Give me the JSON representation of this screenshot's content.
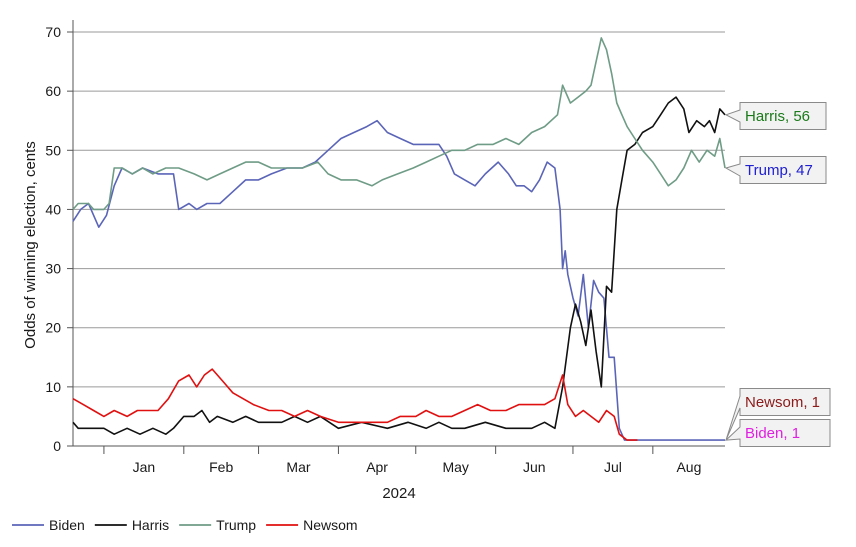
{
  "chart_data": {
    "type": "line",
    "title": "",
    "ylabel": "Odds of winning election, cents",
    "xlabel": "2024",
    "ylim": [
      0,
      70
    ],
    "y_ticks": [
      "0",
      "10",
      "20",
      "30",
      "40",
      "50",
      "60",
      "70"
    ],
    "grid": "horizontal",
    "legend_position": "bottom-left",
    "months": [
      {
        "label": "Jan",
        "date": "2024-01-01"
      },
      {
        "label": "Feb",
        "date": "2024-02-01"
      },
      {
        "label": "Mar",
        "date": "2024-03-01"
      },
      {
        "label": "Apr",
        "date": "2024-04-01"
      },
      {
        "label": "May",
        "date": "2024-05-01"
      },
      {
        "label": "Jun",
        "date": "2024-06-01"
      },
      {
        "label": "Jul",
        "date": "2024-07-01"
      },
      {
        "label": "Aug",
        "date": "2024-08-01"
      }
    ],
    "x_domain": [
      "2023-12-20",
      "2024-08-29"
    ],
    "series": [
      {
        "name": "Biden",
        "color": "#5b65b8",
        "points": [
          [
            "2023-12-20",
            38
          ],
          [
            "2023-12-23",
            40
          ],
          [
            "2023-12-26",
            41
          ],
          [
            "2023-12-28",
            39
          ],
          [
            "2023-12-30",
            37
          ],
          [
            "2024-01-02",
            39
          ],
          [
            "2024-01-05",
            44
          ],
          [
            "2024-01-08",
            47
          ],
          [
            "2024-01-12",
            46
          ],
          [
            "2024-01-16",
            47
          ],
          [
            "2024-01-22",
            46
          ],
          [
            "2024-01-28",
            46
          ],
          [
            "2024-01-30",
            40
          ],
          [
            "2024-02-03",
            41
          ],
          [
            "2024-02-06",
            40
          ],
          [
            "2024-02-10",
            41
          ],
          [
            "2024-02-15",
            41
          ],
          [
            "2024-02-20",
            43
          ],
          [
            "2024-02-25",
            45
          ],
          [
            "2024-03-01",
            45
          ],
          [
            "2024-03-06",
            46
          ],
          [
            "2024-03-12",
            47
          ],
          [
            "2024-03-18",
            47
          ],
          [
            "2024-03-23",
            48
          ],
          [
            "2024-03-28",
            50
          ],
          [
            "2024-04-02",
            52
          ],
          [
            "2024-04-07",
            53
          ],
          [
            "2024-04-12",
            54
          ],
          [
            "2024-04-16",
            55
          ],
          [
            "2024-04-20",
            53
          ],
          [
            "2024-04-25",
            52
          ],
          [
            "2024-04-30",
            51
          ],
          [
            "2024-05-05",
            51
          ],
          [
            "2024-05-10",
            51
          ],
          [
            "2024-05-13",
            49
          ],
          [
            "2024-05-16",
            46
          ],
          [
            "2024-05-20",
            45
          ],
          [
            "2024-05-24",
            44
          ],
          [
            "2024-05-28",
            46
          ],
          [
            "2024-06-02",
            48
          ],
          [
            "2024-06-06",
            46
          ],
          [
            "2024-06-09",
            44
          ],
          [
            "2024-06-12",
            44
          ],
          [
            "2024-06-15",
            43
          ],
          [
            "2024-06-18",
            45
          ],
          [
            "2024-06-21",
            48
          ],
          [
            "2024-06-24",
            47
          ],
          [
            "2024-06-26",
            40
          ],
          [
            "2024-06-27",
            30
          ],
          [
            "2024-06-28",
            33
          ],
          [
            "2024-06-29",
            29
          ],
          [
            "2024-07-01",
            25
          ],
          [
            "2024-07-03",
            22
          ],
          [
            "2024-07-05",
            29
          ],
          [
            "2024-07-07",
            20
          ],
          [
            "2024-07-09",
            28
          ],
          [
            "2024-07-11",
            26
          ],
          [
            "2024-07-13",
            25
          ],
          [
            "2024-07-15",
            15
          ],
          [
            "2024-07-17",
            15
          ],
          [
            "2024-07-19",
            3
          ],
          [
            "2024-07-21",
            1
          ],
          [
            "2024-08-10",
            1
          ],
          [
            "2024-08-29",
            1
          ]
        ]
      },
      {
        "name": "Harris",
        "color": "#111111",
        "points": [
          [
            "2023-12-20",
            4
          ],
          [
            "2023-12-22",
            3
          ],
          [
            "2024-01-01",
            3
          ],
          [
            "2024-01-05",
            2
          ],
          [
            "2024-01-10",
            3
          ],
          [
            "2024-01-15",
            2
          ],
          [
            "2024-01-20",
            3
          ],
          [
            "2024-01-25",
            2
          ],
          [
            "2024-01-28",
            3
          ],
          [
            "2024-02-01",
            5
          ],
          [
            "2024-02-05",
            5
          ],
          [
            "2024-02-08",
            6
          ],
          [
            "2024-02-11",
            4
          ],
          [
            "2024-02-14",
            5
          ],
          [
            "2024-02-20",
            4
          ],
          [
            "2024-02-25",
            5
          ],
          [
            "2024-03-01",
            4
          ],
          [
            "2024-03-10",
            4
          ],
          [
            "2024-03-15",
            5
          ],
          [
            "2024-03-20",
            4
          ],
          [
            "2024-03-25",
            5
          ],
          [
            "2024-04-01",
            3
          ],
          [
            "2024-04-10",
            4
          ],
          [
            "2024-04-20",
            3
          ],
          [
            "2024-04-28",
            4
          ],
          [
            "2024-05-05",
            3
          ],
          [
            "2024-05-10",
            4
          ],
          [
            "2024-05-15",
            3
          ],
          [
            "2024-05-20",
            3
          ],
          [
            "2024-05-28",
            4
          ],
          [
            "2024-06-05",
            3
          ],
          [
            "2024-06-15",
            3
          ],
          [
            "2024-06-20",
            4
          ],
          [
            "2024-06-24",
            3
          ],
          [
            "2024-06-27",
            10
          ],
          [
            "2024-06-30",
            20
          ],
          [
            "2024-07-02",
            24
          ],
          [
            "2024-07-04",
            21
          ],
          [
            "2024-07-06",
            17
          ],
          [
            "2024-07-08",
            23
          ],
          [
            "2024-07-10",
            16
          ],
          [
            "2024-07-12",
            10
          ],
          [
            "2024-07-14",
            27
          ],
          [
            "2024-07-16",
            26
          ],
          [
            "2024-07-18",
            40
          ],
          [
            "2024-07-20",
            45
          ],
          [
            "2024-07-22",
            50
          ],
          [
            "2024-07-25",
            51
          ],
          [
            "2024-07-28",
            53
          ],
          [
            "2024-08-01",
            54
          ],
          [
            "2024-08-04",
            56
          ],
          [
            "2024-08-07",
            58
          ],
          [
            "2024-08-10",
            59
          ],
          [
            "2024-08-13",
            57
          ],
          [
            "2024-08-15",
            53
          ],
          [
            "2024-08-18",
            55
          ],
          [
            "2024-08-21",
            54
          ],
          [
            "2024-08-23",
            55
          ],
          [
            "2024-08-25",
            53
          ],
          [
            "2024-08-27",
            57
          ],
          [
            "2024-08-29",
            56
          ]
        ]
      },
      {
        "name": "Trump",
        "color": "#6f9c86",
        "points": [
          [
            "2023-12-20",
            40
          ],
          [
            "2023-12-22",
            41
          ],
          [
            "2023-12-26",
            41
          ],
          [
            "2023-12-28",
            40
          ],
          [
            "2024-01-01",
            40
          ],
          [
            "2024-01-03",
            41
          ],
          [
            "2024-01-05",
            47
          ],
          [
            "2024-01-08",
            47
          ],
          [
            "2024-01-12",
            46
          ],
          [
            "2024-01-16",
            47
          ],
          [
            "2024-01-20",
            46
          ],
          [
            "2024-01-25",
            47
          ],
          [
            "2024-01-30",
            47
          ],
          [
            "2024-02-05",
            46
          ],
          [
            "2024-02-10",
            45
          ],
          [
            "2024-02-15",
            46
          ],
          [
            "2024-02-20",
            47
          ],
          [
            "2024-02-25",
            48
          ],
          [
            "2024-03-01",
            48
          ],
          [
            "2024-03-06",
            47
          ],
          [
            "2024-03-12",
            47
          ],
          [
            "2024-03-18",
            47
          ],
          [
            "2024-03-24",
            48
          ],
          [
            "2024-03-28",
            46
          ],
          [
            "2024-04-02",
            45
          ],
          [
            "2024-04-08",
            45
          ],
          [
            "2024-04-14",
            44
          ],
          [
            "2024-04-18",
            45
          ],
          [
            "2024-04-24",
            46
          ],
          [
            "2024-04-30",
            47
          ],
          [
            "2024-05-05",
            48
          ],
          [
            "2024-05-10",
            49
          ],
          [
            "2024-05-15",
            50
          ],
          [
            "2024-05-20",
            50
          ],
          [
            "2024-05-25",
            51
          ],
          [
            "2024-05-31",
            51
          ],
          [
            "2024-06-05",
            52
          ],
          [
            "2024-06-10",
            51
          ],
          [
            "2024-06-15",
            53
          ],
          [
            "2024-06-20",
            54
          ],
          [
            "2024-06-25",
            56
          ],
          [
            "2024-06-27",
            61
          ],
          [
            "2024-06-30",
            58
          ],
          [
            "2024-07-03",
            59
          ],
          [
            "2024-07-06",
            60
          ],
          [
            "2024-07-08",
            61
          ],
          [
            "2024-07-10",
            65
          ],
          [
            "2024-07-12",
            69
          ],
          [
            "2024-07-14",
            67
          ],
          [
            "2024-07-16",
            63
          ],
          [
            "2024-07-18",
            58
          ],
          [
            "2024-07-20",
            56
          ],
          [
            "2024-07-22",
            54
          ],
          [
            "2024-07-25",
            52
          ],
          [
            "2024-07-28",
            50
          ],
          [
            "2024-08-01",
            48
          ],
          [
            "2024-08-04",
            46
          ],
          [
            "2024-08-07",
            44
          ],
          [
            "2024-08-10",
            45
          ],
          [
            "2024-08-13",
            47
          ],
          [
            "2024-08-16",
            50
          ],
          [
            "2024-08-19",
            48
          ],
          [
            "2024-08-22",
            50
          ],
          [
            "2024-08-25",
            49
          ],
          [
            "2024-08-27",
            52
          ],
          [
            "2024-08-29",
            47
          ]
        ]
      },
      {
        "name": "Newsom",
        "color": "#e01010",
        "points": [
          [
            "2023-12-20",
            8
          ],
          [
            "2023-12-24",
            7
          ],
          [
            "2023-12-28",
            6
          ],
          [
            "2024-01-01",
            5
          ],
          [
            "2024-01-05",
            6
          ],
          [
            "2024-01-10",
            5
          ],
          [
            "2024-01-14",
            6
          ],
          [
            "2024-01-18",
            6
          ],
          [
            "2024-01-22",
            6
          ],
          [
            "2024-01-26",
            8
          ],
          [
            "2024-01-30",
            11
          ],
          [
            "2024-02-03",
            12
          ],
          [
            "2024-02-06",
            10
          ],
          [
            "2024-02-09",
            12
          ],
          [
            "2024-02-12",
            13
          ],
          [
            "2024-02-16",
            11
          ],
          [
            "2024-02-20",
            9
          ],
          [
            "2024-02-24",
            8
          ],
          [
            "2024-02-28",
            7
          ],
          [
            "2024-03-05",
            6
          ],
          [
            "2024-03-10",
            6
          ],
          [
            "2024-03-15",
            5
          ],
          [
            "2024-03-20",
            6
          ],
          [
            "2024-03-25",
            5
          ],
          [
            "2024-04-01",
            4
          ],
          [
            "2024-04-10",
            4
          ],
          [
            "2024-04-20",
            4
          ],
          [
            "2024-04-25",
            5
          ],
          [
            "2024-05-01",
            5
          ],
          [
            "2024-05-05",
            6
          ],
          [
            "2024-05-10",
            5
          ],
          [
            "2024-05-15",
            5
          ],
          [
            "2024-05-20",
            6
          ],
          [
            "2024-05-25",
            7
          ],
          [
            "2024-05-30",
            6
          ],
          [
            "2024-06-05",
            6
          ],
          [
            "2024-06-10",
            7
          ],
          [
            "2024-06-15",
            7
          ],
          [
            "2024-06-20",
            7
          ],
          [
            "2024-06-24",
            8
          ],
          [
            "2024-06-27",
            12
          ],
          [
            "2024-06-29",
            7
          ],
          [
            "2024-07-02",
            5
          ],
          [
            "2024-07-05",
            6
          ],
          [
            "2024-07-08",
            5
          ],
          [
            "2024-07-11",
            4
          ],
          [
            "2024-07-14",
            6
          ],
          [
            "2024-07-17",
            5
          ],
          [
            "2024-07-19",
            2
          ],
          [
            "2024-07-22",
            1
          ],
          [
            "2024-07-26",
            1
          ]
        ]
      }
    ],
    "end_labels": [
      {
        "text": "Harris, 56",
        "value": 56,
        "color": "#1a7a1a"
      },
      {
        "text": "Trump, 47",
        "value": 47,
        "color": "#2020d0"
      },
      {
        "text": "Newsom, 1",
        "value": 1,
        "color": "#8b1a1a"
      },
      {
        "text": "Biden, 1",
        "value": 1,
        "color": "#e020e0"
      }
    ]
  }
}
